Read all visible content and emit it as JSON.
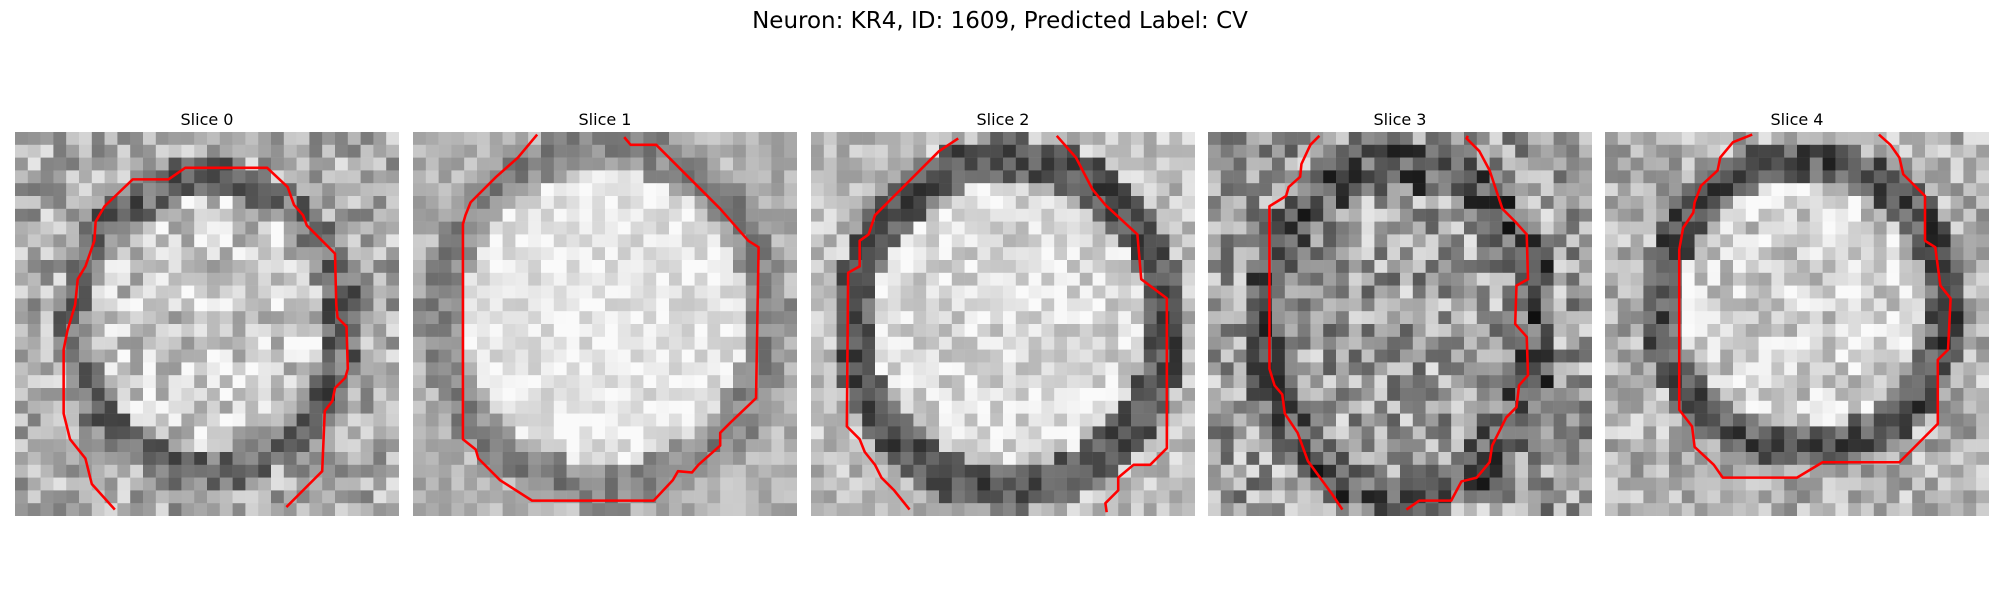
{
  "figure": {
    "title": "Neuron: KR4, ID: 1609, Predicted Label: CV",
    "contour_color": "#ff0000",
    "colormap": "grayscale",
    "slices": [
      {
        "title": "Slice 0"
      },
      {
        "title": "Slice 1"
      },
      {
        "title": "Slice 2"
      },
      {
        "title": "Slice 3"
      },
      {
        "title": "Slice 4"
      }
    ]
  }
}
